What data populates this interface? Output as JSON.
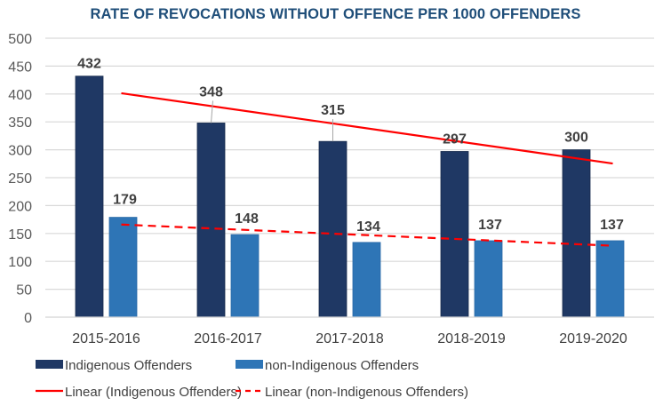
{
  "chart_data": {
    "type": "bar",
    "title": "RATE OF REVOCATIONS WITHOUT OFFENCE PER 1000 OFFENDERS",
    "xlabel": "",
    "ylabel": "",
    "ylim": [
      0,
      500
    ],
    "yticks": [
      0,
      50,
      100,
      150,
      200,
      250,
      300,
      350,
      400,
      450,
      500
    ],
    "grid": true,
    "legend_position": "bottom",
    "categories": [
      "2015-2016",
      "2016-2017",
      "2017-2018",
      "2018-2019",
      "2019-2020"
    ],
    "series": [
      {
        "name": "Indigenous Offenders",
        "color": "#1f3864",
        "values": [
          432,
          348,
          315,
          297,
          300
        ]
      },
      {
        "name": "non-Indigenous Offenders",
        "color": "#2e75b6",
        "values": [
          179,
          148,
          134,
          137,
          137
        ]
      }
    ],
    "trendlines": [
      {
        "name": "Linear (Indigenous Offenders)",
        "series": "Indigenous Offenders",
        "type": "linear",
        "style": "solid",
        "color": "#ff0000"
      },
      {
        "name": "Linear (non-Indigenous Offenders)",
        "series": "non-Indigenous Offenders",
        "type": "linear",
        "style": "dashed",
        "color": "#ff0000"
      }
    ]
  }
}
